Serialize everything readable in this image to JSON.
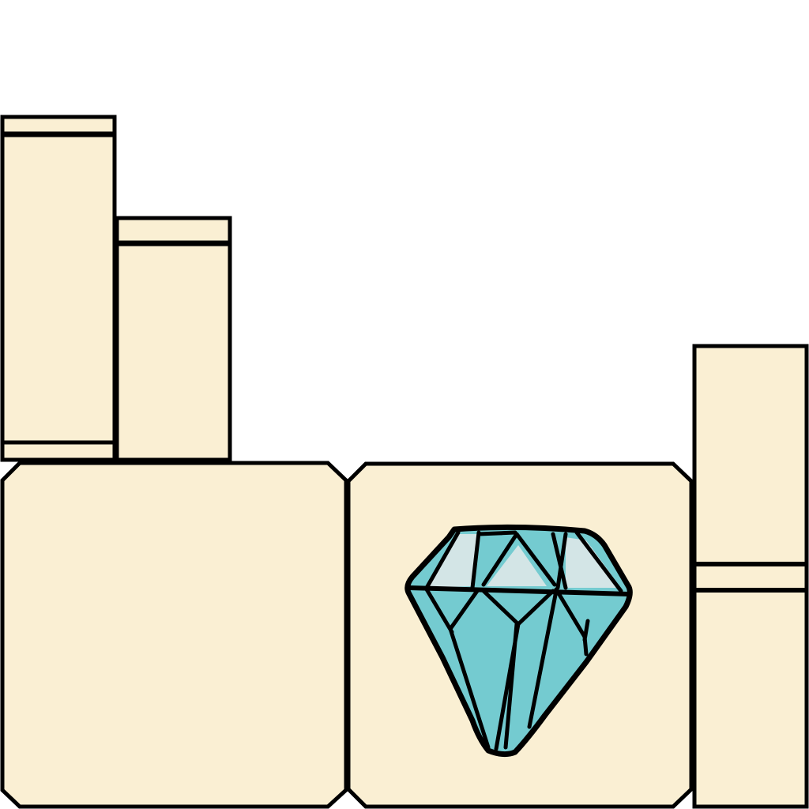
{
  "palette": {
    "background": "#ffffff",
    "panel_fill": "#faefd3",
    "outline": "#000000",
    "gem_fill": "#74cbd0",
    "gem_highlight": "#d3e5e6"
  },
  "icons": {
    "gem": "diamond-icon"
  }
}
